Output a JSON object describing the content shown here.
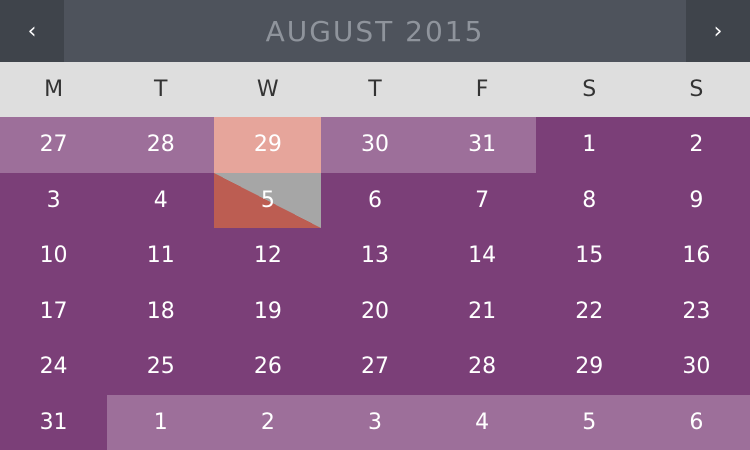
{
  "header": {
    "title": "AUGUST 2015",
    "prev_icon": "‹",
    "next_icon": "›"
  },
  "weekdays": [
    "M",
    "T",
    "W",
    "T",
    "F",
    "S",
    "S"
  ],
  "weeks": [
    [
      {
        "label": "27",
        "state": "other"
      },
      {
        "label": "28",
        "state": "other"
      },
      {
        "label": "29",
        "state": "selected"
      },
      {
        "label": "30",
        "state": "other"
      },
      {
        "label": "31",
        "state": "other"
      },
      {
        "label": "1",
        "state": "current"
      },
      {
        "label": "2",
        "state": "current"
      }
    ],
    [
      {
        "label": "3",
        "state": "current"
      },
      {
        "label": "4",
        "state": "current"
      },
      {
        "label": "5",
        "state": "today"
      },
      {
        "label": "6",
        "state": "current"
      },
      {
        "label": "7",
        "state": "current"
      },
      {
        "label": "8",
        "state": "current"
      },
      {
        "label": "9",
        "state": "current"
      }
    ],
    [
      {
        "label": "10",
        "state": "current"
      },
      {
        "label": "11",
        "state": "current"
      },
      {
        "label": "12",
        "state": "current"
      },
      {
        "label": "13",
        "state": "current"
      },
      {
        "label": "14",
        "state": "current"
      },
      {
        "label": "15",
        "state": "current"
      },
      {
        "label": "16",
        "state": "current"
      }
    ],
    [
      {
        "label": "17",
        "state": "current"
      },
      {
        "label": "18",
        "state": "current"
      },
      {
        "label": "19",
        "state": "current"
      },
      {
        "label": "20",
        "state": "current"
      },
      {
        "label": "21",
        "state": "current"
      },
      {
        "label": "22",
        "state": "current"
      },
      {
        "label": "23",
        "state": "current"
      }
    ],
    [
      {
        "label": "24",
        "state": "current"
      },
      {
        "label": "25",
        "state": "current"
      },
      {
        "label": "26",
        "state": "current"
      },
      {
        "label": "27",
        "state": "current"
      },
      {
        "label": "28",
        "state": "current"
      },
      {
        "label": "29",
        "state": "current"
      },
      {
        "label": "30",
        "state": "current"
      }
    ],
    [
      {
        "label": "31",
        "state": "current"
      },
      {
        "label": "1",
        "state": "other"
      },
      {
        "label": "2",
        "state": "other"
      },
      {
        "label": "3",
        "state": "other"
      },
      {
        "label": "4",
        "state": "other"
      },
      {
        "label": "5",
        "state": "other"
      },
      {
        "label": "6",
        "state": "other"
      }
    ]
  ],
  "colors": {
    "header_bg": "#4e535c",
    "nav_bg": "#3f444b",
    "title_text": "#8f949c",
    "weekday_bg": "#dedede",
    "month_bg": "#7b3f78",
    "other_month_bg": "#9d6f9a",
    "selected_bg": "#e6a59b",
    "today_bg": "#a6a6a6",
    "today_accent": "#bc5d52"
  }
}
